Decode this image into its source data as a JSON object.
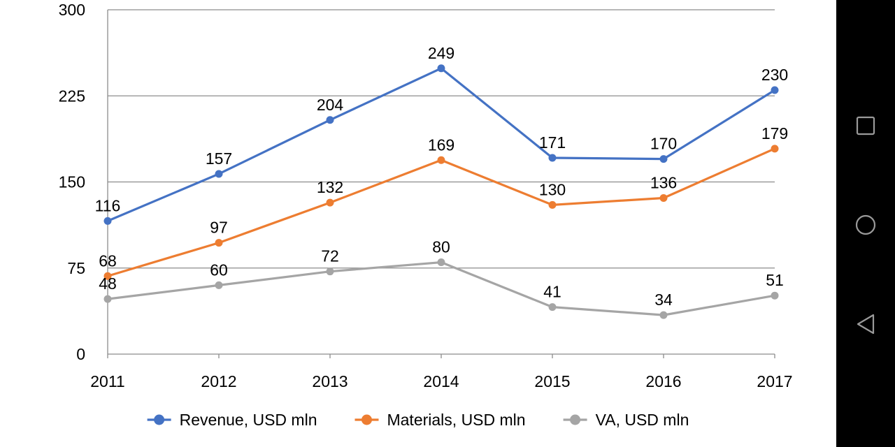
{
  "chart_data": {
    "type": "line",
    "title": "",
    "xlabel": "",
    "ylabel": "",
    "x": [
      "2011",
      "2012",
      "2013",
      "2014",
      "2015",
      "2016",
      "2017"
    ],
    "ylim": [
      0,
      300
    ],
    "yticks": [
      0,
      75,
      150,
      225,
      300
    ],
    "grid": true,
    "legend_position": "bottom",
    "series": [
      {
        "name": "Revenue, USD mln",
        "color": "#4472C4",
        "values": [
          116,
          157,
          204,
          249,
          171,
          170,
          230
        ]
      },
      {
        "name": "Materials, USD mln",
        "color": "#ED7D31",
        "values": [
          68,
          97,
          132,
          169,
          130,
          136,
          179
        ]
      },
      {
        "name": "VA, USD mln",
        "color": "#A5A5A5",
        "values": [
          48,
          60,
          72,
          80,
          41,
          34,
          51
        ]
      }
    ]
  },
  "nav_bar": {
    "icons": [
      "recents-square-icon",
      "home-circle-icon",
      "back-triangle-icon"
    ]
  }
}
